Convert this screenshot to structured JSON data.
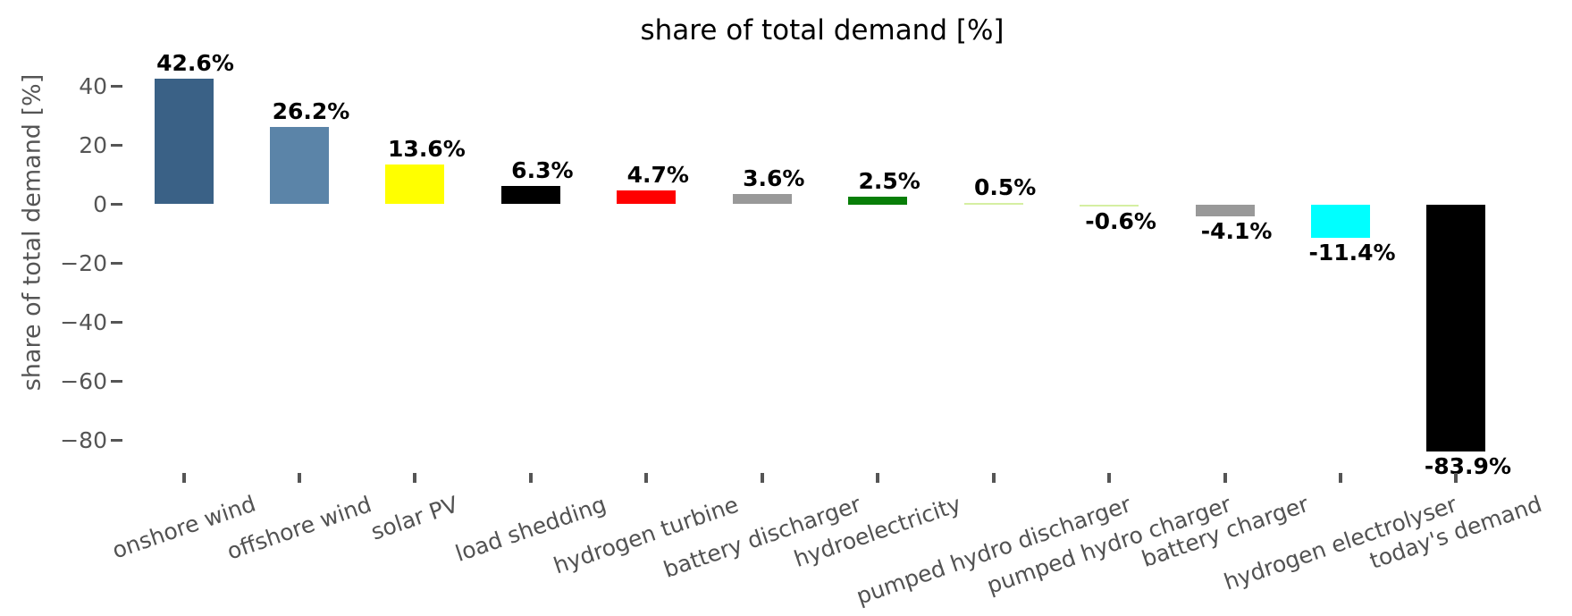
{
  "chart_data": {
    "type": "bar",
    "title": "share of total demand [%]",
    "ylabel": "share of total demand [%]",
    "xlabel": "",
    "categories": [
      "onshore wind",
      "offshore wind",
      "solar PV",
      "load shedding",
      "hydrogen turbine",
      "battery discharger",
      "hydroelectricity",
      "pumped hydro discharger",
      "pumped hydro charger",
      "battery charger",
      "hydrogen electrolyser",
      "today's demand"
    ],
    "values": [
      42.6,
      26.2,
      13.6,
      6.3,
      4.7,
      3.6,
      2.5,
      0.5,
      -0.6,
      -4.1,
      -11.4,
      -83.9
    ],
    "value_labels": [
      "42.6%",
      "26.2%",
      "13.6%",
      "6.3%",
      "4.7%",
      "3.6%",
      "2.5%",
      "0.5%",
      "-0.6%",
      "-4.1%",
      "-11.4%",
      "-83.9%"
    ],
    "bar_colors": [
      "#3a6186",
      "#5b84a8",
      "#ffff00",
      "#000000",
      "#ff0000",
      "#999999",
      "#087e08",
      "#d5efa2",
      "#d5efa2",
      "#999999",
      "#00ffff",
      "#000000"
    ],
    "y_ticks": [
      {
        "value": 40,
        "label": "40"
      },
      {
        "value": 20,
        "label": "20"
      },
      {
        "value": 0,
        "label": "0"
      },
      {
        "value": -20,
        "label": "−20"
      },
      {
        "value": -40,
        "label": "−40"
      },
      {
        "value": -60,
        "label": "−60"
      },
      {
        "value": -80,
        "label": "−80"
      }
    ],
    "ylim": [
      -93,
      51
    ],
    "grid": false,
    "legend": null,
    "x_tick_label_rotation_deg": 19,
    "background_color": "#ffffff",
    "axis_tick_color": "#555555",
    "axis_text_color": "#555555",
    "category_text_color": "#525252",
    "value_text_color": "#000000",
    "title_color": "#000000"
  }
}
